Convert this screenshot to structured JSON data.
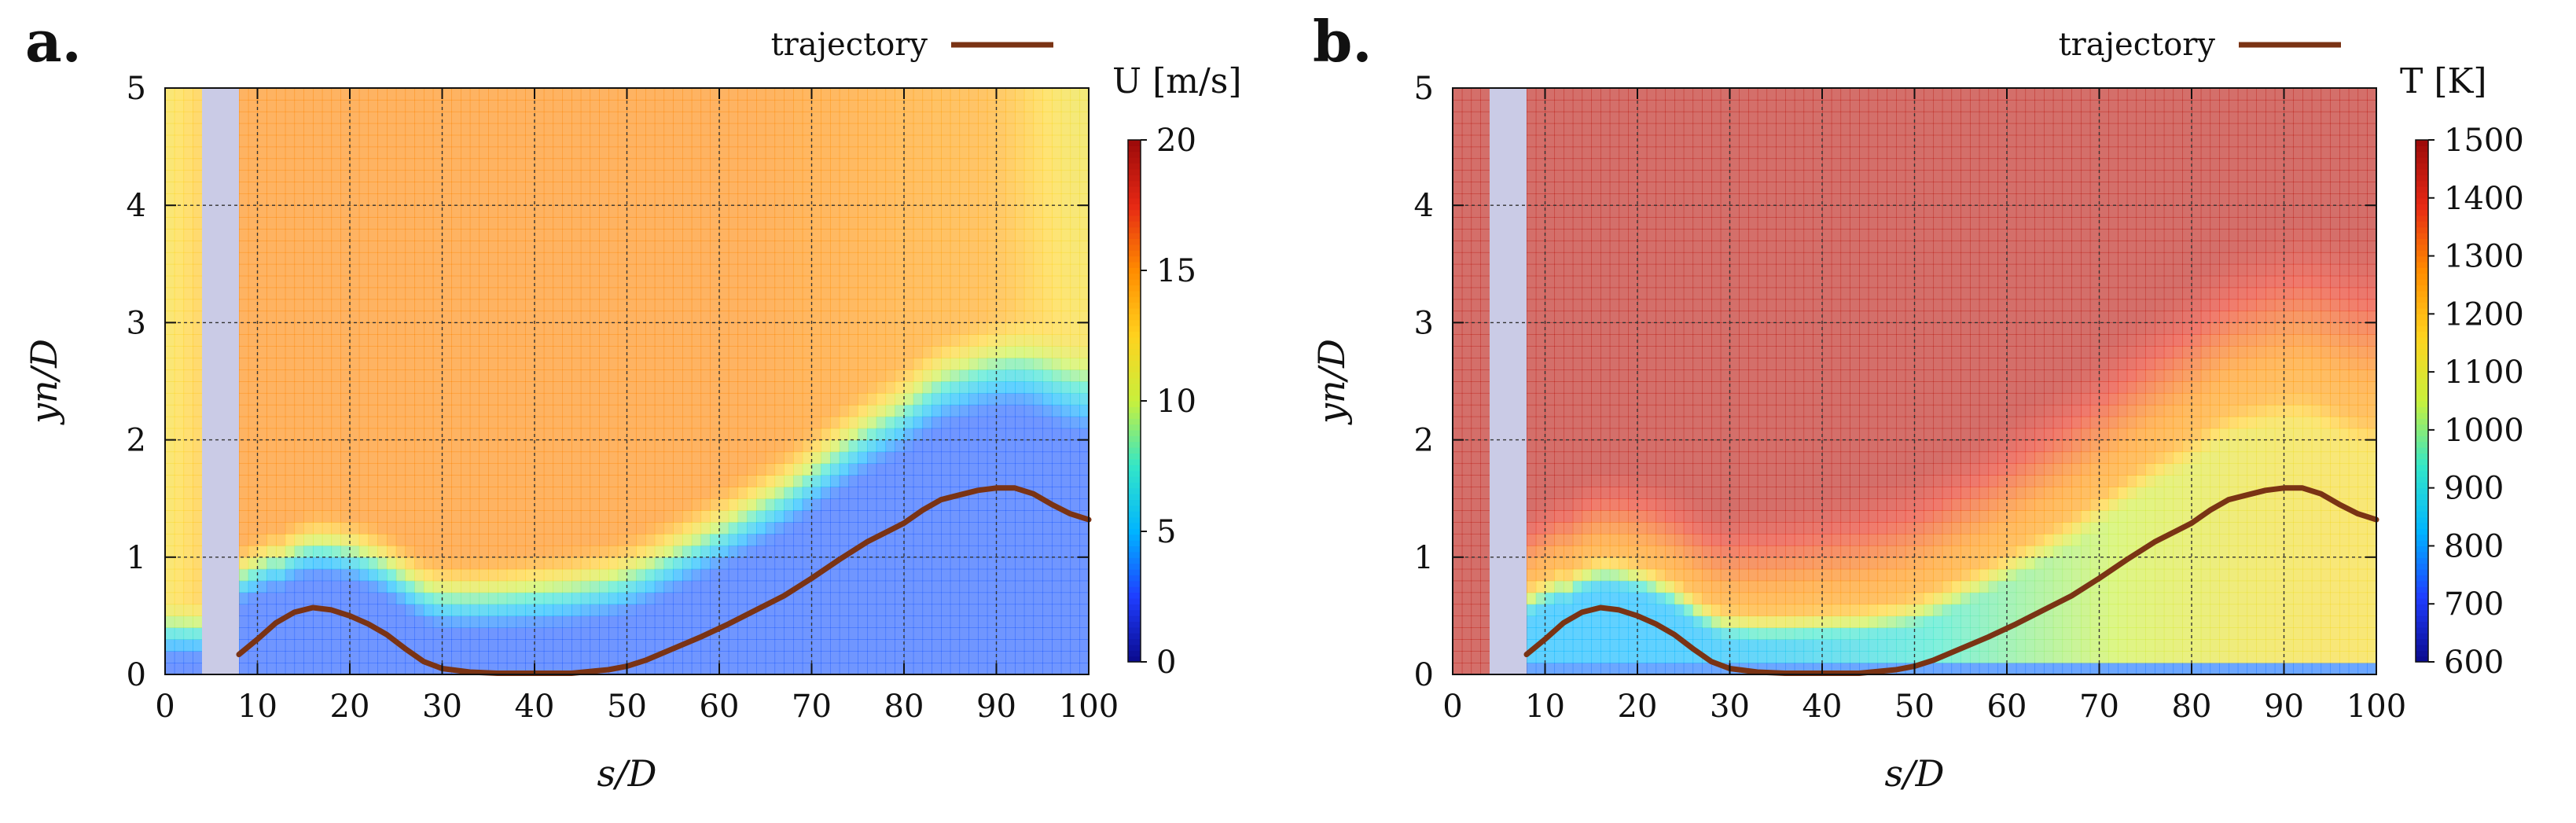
{
  "figure": {
    "panels": [
      {
        "letter": "a.",
        "legend_label": "trajectory",
        "colorbar_label": "U [m/s]",
        "colorbar_ticks": [
          "0",
          "5",
          "10",
          "15",
          "20"
        ],
        "colorbar_range": [
          0,
          20
        ],
        "field": "velocity"
      },
      {
        "letter": "b.",
        "legend_label": "trajectory",
        "colorbar_label": "T [K]",
        "colorbar_ticks": [
          "600",
          "700",
          "800",
          "900",
          "1000",
          "1100",
          "1200",
          "1300",
          "1400",
          "1500"
        ],
        "colorbar_range": [
          600,
          1500
        ],
        "field": "temperature"
      }
    ],
    "xlabel": "s/D",
    "ylabel": "yn/D",
    "x_ticks": [
      "0",
      "10",
      "20",
      "30",
      "40",
      "50",
      "60",
      "70",
      "80",
      "90",
      "100"
    ],
    "y_ticks": [
      "0",
      "1",
      "2",
      "3",
      "4",
      "5"
    ],
    "colors": {
      "trajectory": "#7a3314",
      "grid": "#333333",
      "blocked_region": "#cacbe6",
      "colormap": [
        "#0a0a8c",
        "#1f3dff",
        "#00b4ff",
        "#33e6c8",
        "#c8f03c",
        "#ffd21e",
        "#ff8c00",
        "#e62814",
        "#9b0a0a"
      ]
    }
  },
  "chart_data": [
    {
      "type": "heatmap",
      "title": "",
      "xlabel": "s/D",
      "ylabel": "yn/D",
      "xlim": [
        0,
        100
      ],
      "ylim": [
        0,
        5
      ],
      "grid": true,
      "legend_placement": "top-right",
      "colorbar": {
        "label": "U [m/s]",
        "range": [
          0,
          20
        ],
        "ticks": [
          0,
          5,
          10,
          15,
          20
        ]
      },
      "blocked_x_range": [
        4,
        8
      ],
      "series": [
        {
          "name": "trajectory",
          "type": "line",
          "x": [
            8,
            10,
            12,
            14,
            16,
            18,
            20,
            22,
            24,
            26,
            28,
            30,
            33,
            36,
            40,
            44,
            48,
            50,
            52,
            55,
            58,
            61,
            64,
            67,
            70,
            73,
            76,
            79,
            80,
            82,
            84,
            86,
            88,
            90,
            92,
            94,
            96,
            98,
            100
          ],
          "y": [
            0.17,
            0.3,
            0.44,
            0.53,
            0.57,
            0.55,
            0.5,
            0.43,
            0.34,
            0.22,
            0.11,
            0.05,
            0.02,
            0.01,
            0.01,
            0.01,
            0.04,
            0.07,
            0.12,
            0.22,
            0.32,
            0.43,
            0.55,
            0.67,
            0.82,
            0.98,
            1.13,
            1.25,
            1.29,
            1.4,
            1.49,
            1.53,
            1.57,
            1.59,
            1.59,
            1.54,
            1.45,
            1.37,
            1.32
          ]
        }
      ]
    },
    {
      "type": "heatmap",
      "title": "",
      "xlabel": "s/D",
      "ylabel": "yn/D",
      "xlim": [
        0,
        100
      ],
      "ylim": [
        0,
        5
      ],
      "grid": true,
      "legend_placement": "top-right",
      "colorbar": {
        "label": "T [K]",
        "range": [
          600,
          1500
        ],
        "ticks": [
          600,
          700,
          800,
          900,
          1000,
          1100,
          1200,
          1300,
          1400,
          1500
        ]
      },
      "blocked_x_range": [
        4,
        8
      ],
      "series": [
        {
          "name": "trajectory",
          "type": "line",
          "x": [
            8,
            10,
            12,
            14,
            16,
            18,
            20,
            22,
            24,
            26,
            28,
            30,
            33,
            36,
            40,
            44,
            48,
            50,
            52,
            55,
            58,
            61,
            64,
            67,
            70,
            73,
            76,
            79,
            80,
            82,
            84,
            86,
            88,
            90,
            92,
            94,
            96,
            98,
            100
          ],
          "y": [
            0.17,
            0.3,
            0.44,
            0.53,
            0.57,
            0.55,
            0.5,
            0.43,
            0.34,
            0.22,
            0.11,
            0.05,
            0.02,
            0.01,
            0.01,
            0.01,
            0.04,
            0.07,
            0.12,
            0.22,
            0.32,
            0.43,
            0.55,
            0.67,
            0.82,
            0.98,
            1.13,
            1.25,
            1.29,
            1.4,
            1.49,
            1.53,
            1.57,
            1.59,
            1.59,
            1.54,
            1.45,
            1.37,
            1.32
          ]
        }
      ]
    }
  ]
}
